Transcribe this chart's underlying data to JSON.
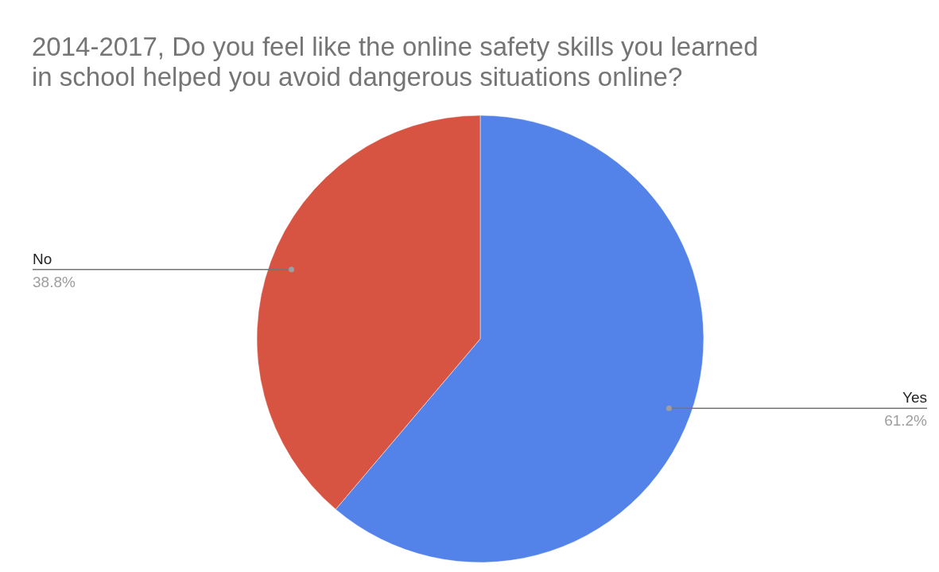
{
  "chart_data": {
    "type": "pie",
    "title": "2014-2017, Do you feel like the online safety skills you learned in school helped you avoid dangerous situations online?",
    "categories": [
      "Yes",
      "No"
    ],
    "values": [
      61.2,
      38.8
    ],
    "value_labels": [
      "61.2%",
      "38.8%"
    ],
    "colors": [
      "#5383e8",
      "#d75442"
    ]
  }
}
